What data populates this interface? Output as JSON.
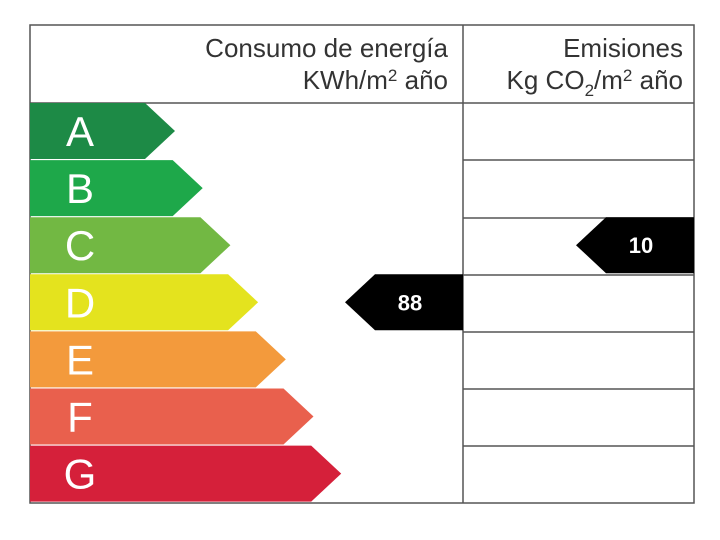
{
  "header": {
    "energy_title": "Consumo de energía",
    "energy_unit_base": "KWh/m",
    "energy_unit_sup": "2",
    "energy_unit_tail": " año",
    "emissions_title": "Emisiones",
    "emissions_unit_a": "Kg CO",
    "emissions_unit_sub": "2",
    "emissions_unit_b": "/m",
    "emissions_unit_sup": "2",
    "emissions_unit_tail": " año"
  },
  "classes": [
    {
      "letter": "A",
      "color": "#1d8a46"
    },
    {
      "letter": "B",
      "color": "#1ea84a"
    },
    {
      "letter": "C",
      "color": "#72b843"
    },
    {
      "letter": "D",
      "color": "#e4e31e"
    },
    {
      "letter": "E",
      "color": "#f39a3c"
    },
    {
      "letter": "F",
      "color": "#e9604d"
    },
    {
      "letter": "G",
      "color": "#d5203a"
    }
  ],
  "energy_rating": {
    "class": "D",
    "value": "88"
  },
  "emissions_rating": {
    "class": "C",
    "value": "10"
  },
  "indicator_color": "#000000"
}
